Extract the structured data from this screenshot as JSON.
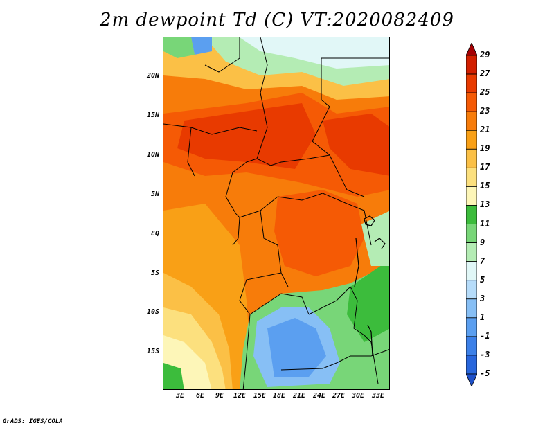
{
  "title": "2m dewpoint Td (C) VT:2020082409",
  "footer": "GrADS: IGES/COLA",
  "map": {
    "lon_range": [
      0,
      34
    ],
    "lat_range": [
      -19.5,
      24.5
    ],
    "y_ticks": [
      "20N",
      "15N",
      "10N",
      "5N",
      "EQ",
      "5S",
      "10S",
      "15S"
    ],
    "y_tick_values": [
      20,
      15,
      10,
      5,
      0,
      -5,
      -10,
      -15
    ],
    "x_ticks": [
      "3E",
      "6E",
      "9E",
      "12E",
      "15E",
      "18E",
      "21E",
      "24E",
      "27E",
      "30E",
      "33E"
    ],
    "x_tick_values": [
      3,
      6,
      9,
      12,
      15,
      18,
      21,
      24,
      27,
      30,
      33
    ]
  },
  "colorbar": {
    "labels": [
      "29",
      "27",
      "25",
      "23",
      "21",
      "19",
      "17",
      "15",
      "13",
      "11",
      "9",
      "7",
      "5",
      "3",
      "1",
      "-1",
      "-3",
      "-5"
    ],
    "colors": [
      "#a50003",
      "#d21f00",
      "#e83a00",
      "#f55a05",
      "#f77c0a",
      "#f9a016",
      "#fbc046",
      "#fce07e",
      "#fdf6b8",
      "#3cbc3c",
      "#78d678",
      "#b4ecb4",
      "#e1f7f7",
      "#b6dcfa",
      "#87bff5",
      "#5b9ff0",
      "#3c80e8",
      "#2866dc",
      "#1e50c8"
    ]
  }
}
